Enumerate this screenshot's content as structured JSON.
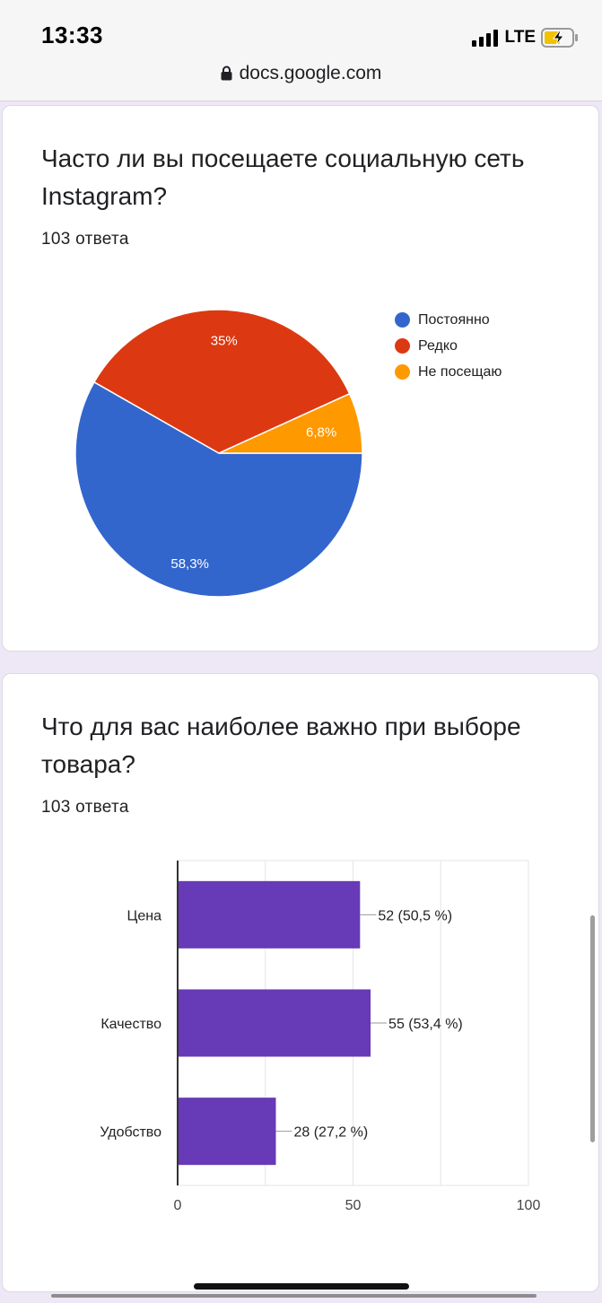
{
  "status_bar": {
    "time": "13:33",
    "network": "LTE",
    "url": "docs.google.com"
  },
  "question1": {
    "title": "Часто ли вы посещаете социальную сеть Instagram?",
    "responses": "103 ответа",
    "chart_data": {
      "type": "pie",
      "slices": [
        {
          "label": "Постоянно",
          "value": 58.3,
          "display": "58,3%",
          "color": "#3366cc"
        },
        {
          "label": "Редко",
          "value": 35,
          "display": "35%",
          "color": "#dc3912"
        },
        {
          "label": "Не посещаю",
          "value": 6.8,
          "display": "6,8%",
          "color": "#ff9900"
        }
      ],
      "legend_position": "right"
    }
  },
  "question2": {
    "title": "Что для вас наиболее важно при выборе товара?",
    "responses": "103 ответа",
    "chart_data": {
      "type": "bar",
      "orientation": "horizontal",
      "categories": [
        "Цена",
        "Качество",
        "Удобство"
      ],
      "values": [
        52,
        55,
        28
      ],
      "value_labels": [
        "52 (50,5 %)",
        "55 (53,4 %)",
        "28 (27,2 %)"
      ],
      "xlim": [
        0,
        100
      ],
      "x_ticks": [
        "0",
        "50",
        "100"
      ],
      "bar_color": "#673ab7",
      "grid": true
    }
  }
}
